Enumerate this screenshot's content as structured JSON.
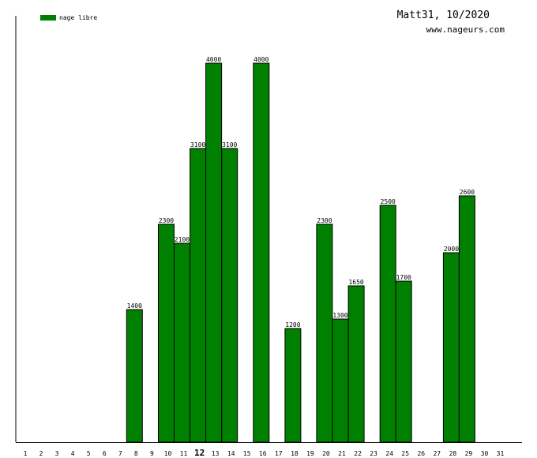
{
  "chart_data": {
    "type": "bar",
    "title": "Matt31, 10/2020",
    "subtitle": "www.nageurs.com",
    "legend": {
      "placement": "top-left",
      "entries": [
        "nage libre"
      ]
    },
    "xlabel": "",
    "ylabel": "",
    "ylim": [
      0,
      4500
    ],
    "grid": false,
    "highlight_category": "12",
    "categories": [
      "1",
      "2",
      "3",
      "4",
      "5",
      "6",
      "7",
      "8",
      "9",
      "10",
      "11",
      "12",
      "13",
      "14",
      "15",
      "16",
      "17",
      "18",
      "19",
      "20",
      "21",
      "22",
      "23",
      "24",
      "25",
      "26",
      "27",
      "28",
      "29",
      "30",
      "31"
    ],
    "series": [
      {
        "name": "nage libre",
        "color": "#008000",
        "values": [
          0,
          0,
          0,
          0,
          0,
          0,
          0,
          1400,
          0,
          2300,
          2100,
          3100,
          4000,
          3100,
          0,
          4000,
          0,
          1200,
          0,
          2300,
          1300,
          1650,
          0,
          2500,
          1700,
          0,
          0,
          2000,
          2600,
          0,
          0
        ]
      }
    ]
  }
}
